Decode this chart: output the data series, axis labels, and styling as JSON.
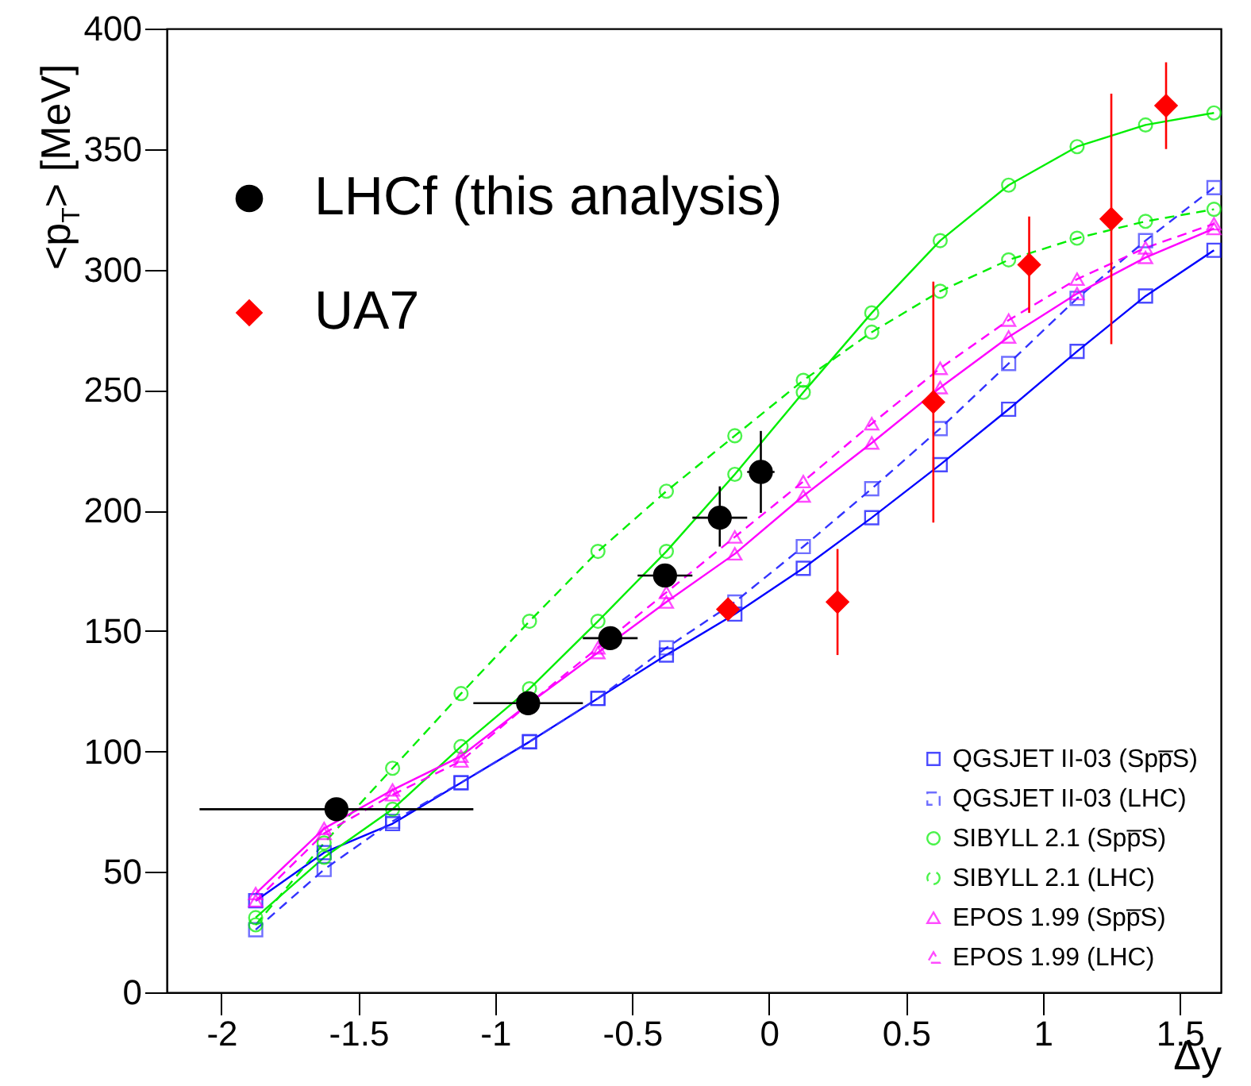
{
  "chart_data": {
    "type": "line",
    "xlabel": "Δy",
    "ylabel": "<p$_{T}$> [MeV]",
    "xlim": [
      -2.2,
      1.65
    ],
    "ylim": [
      0,
      400
    ],
    "xticks": [
      -2,
      -1.5,
      -1,
      -0.5,
      0,
      0.5,
      1,
      1.5
    ],
    "yticks": [
      0,
      50,
      100,
      150,
      200,
      250,
      300,
      350,
      400
    ],
    "grid": false,
    "legend": "bottom right",
    "x": [
      -1.875,
      -1.625,
      -1.375,
      -1.125,
      -0.875,
      -0.625,
      -0.375,
      -0.125,
      0.125,
      0.375,
      0.625,
      0.875,
      1.125,
      1.375,
      1.625
    ],
    "series": [
      {
        "name": "LHCf (this analysis)",
        "type": "scatter",
        "marker": "circle",
        "color": "#000000",
        "x": [
          -1.58,
          -0.88,
          -0.58,
          -0.38,
          -0.18,
          -0.03
        ],
        "values": [
          76,
          120,
          147,
          173,
          197,
          216
        ],
        "xerrors": [
          [
            -2.08,
            -1.08
          ],
          [
            -1.08,
            -0.68
          ],
          [
            -0.68,
            -0.48
          ],
          [
            -0.48,
            -0.28
          ],
          [
            -0.28,
            -0.08
          ],
          [
            -0.08,
            0.02
          ]
        ],
        "errors": [
          null,
          null,
          null,
          [
            170,
            177
          ],
          [
            185,
            210
          ],
          [
            199,
            233
          ]
        ]
      },
      {
        "name": "UA7",
        "type": "scatter",
        "marker": "diamond",
        "color": "#ff0000",
        "x": [
          -0.15,
          0.25,
          0.6,
          0.95,
          1.25,
          1.45
        ],
        "values": [
          159,
          162,
          245,
          302,
          321,
          368
        ],
        "errors": [
          null,
          [
            140,
            184
          ],
          [
            195,
            295
          ],
          [
            282,
            322
          ],
          [
            269,
            373
          ],
          [
            350,
            386
          ]
        ]
      },
      {
        "name": "QGSJET II-03 (Spp̅S)",
        "marker": "square",
        "line_style": "solid",
        "color": "#0000ff",
        "values": [
          38,
          58,
          70,
          87,
          104,
          122,
          140,
          157,
          176,
          197,
          219,
          242,
          266,
          289,
          308
        ]
      },
      {
        "name": "QGSJET II-03 (LHC)",
        "marker": "square",
        "line_style": "dashed",
        "color": "#3333ff",
        "values": [
          26,
          51,
          71,
          87,
          104,
          122,
          143,
          162,
          185,
          209,
          234,
          261,
          288,
          312,
          334
        ]
      },
      {
        "name": "SIBYLL 2.1 (Spp̅S)",
        "marker": "circle",
        "line_style": "solid",
        "color": "#00ee00",
        "values": [
          31,
          56,
          76,
          102,
          126,
          154,
          183,
          215,
          249,
          282,
          312,
          335,
          351,
          360,
          365
        ]
      },
      {
        "name": "SIBYLL 2.1 (LHC)",
        "marker": "circle",
        "line_style": "dashed",
        "color": "#00ee00",
        "values": [
          28,
          62,
          93,
          124,
          154,
          183,
          208,
          231,
          254,
          274,
          291,
          304,
          313,
          320,
          325
        ]
      },
      {
        "name": "EPOS 1.99 (Spp̅S)",
        "marker": "triangle",
        "line_style": "solid",
        "color": "#ff00ff",
        "values": [
          41,
          68,
          84,
          98,
          120,
          141,
          162,
          182,
          206,
          228,
          251,
          272,
          290,
          305,
          317
        ]
      },
      {
        "name": "EPOS 1.99 (LHC)",
        "marker": "triangle",
        "line_style": "dashed",
        "color": "#ff00ff",
        "values": [
          38,
          66,
          82,
          96,
          120,
          143,
          166,
          189,
          212,
          236,
          259,
          279,
          296,
          309,
          319
        ]
      }
    ]
  }
}
